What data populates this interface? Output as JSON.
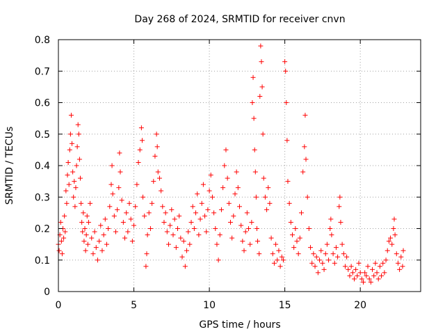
{
  "chart_data": {
    "type": "scatter",
    "title": "Day 268 of 2024, SRMTID for receiver cnvn",
    "xlabel": "GPS time / hours",
    "ylabel": "SRMTID / TECUs",
    "xlim": [
      0,
      24
    ],
    "ylim": [
      0,
      0.8
    ],
    "xticks": [
      0,
      5,
      10,
      15,
      20
    ],
    "xtick_labels": [
      "0",
      "5",
      "10",
      "15",
      "20"
    ],
    "yticks": [
      0,
      0.1,
      0.2,
      0.3,
      0.4,
      0.5,
      0.6,
      0.7,
      0.8
    ],
    "ytick_labels": [
      "0",
      "0.1",
      "0.2",
      "0.3",
      "0.4",
      "0.5",
      "0.6",
      "0.7",
      "0.8"
    ],
    "grid": true,
    "marker": "plus",
    "color": "#ff0000",
    "series": [
      {
        "name": "cnvn",
        "points": [
          [
            0.0,
            0.15
          ],
          [
            0.05,
            0.13
          ],
          [
            0.1,
            0.18
          ],
          [
            0.15,
            0.22
          ],
          [
            0.2,
            0.16
          ],
          [
            0.25,
            0.12
          ],
          [
            0.3,
            0.2
          ],
          [
            0.35,
            0.17
          ],
          [
            0.4,
            0.24
          ],
          [
            0.45,
            0.19
          ],
          [
            0.5,
            0.32
          ],
          [
            0.55,
            0.28
          ],
          [
            0.6,
            0.37
          ],
          [
            0.65,
            0.41
          ],
          [
            0.7,
            0.34
          ],
          [
            0.75,
            0.45
          ],
          [
            0.8,
            0.5
          ],
          [
            0.85,
            0.56
          ],
          [
            0.9,
            0.47
          ],
          [
            0.95,
            0.38
          ],
          [
            1.0,
            0.3
          ],
          [
            1.05,
            0.35
          ],
          [
            1.1,
            0.27
          ],
          [
            1.15,
            0.33
          ],
          [
            1.2,
            0.4
          ],
          [
            1.25,
            0.46
          ],
          [
            1.3,
            0.53
          ],
          [
            1.35,
            0.5
          ],
          [
            1.4,
            0.42
          ],
          [
            1.45,
            0.36
          ],
          [
            1.5,
            0.28
          ],
          [
            1.55,
            0.22
          ],
          [
            1.6,
            0.19
          ],
          [
            1.65,
            0.25
          ],
          [
            1.7,
            0.16
          ],
          [
            1.75,
            0.2
          ],
          [
            1.8,
            0.13
          ],
          [
            1.85,
            0.18
          ],
          [
            1.9,
            0.24
          ],
          [
            1.95,
            0.15
          ],
          [
            2.0,
            0.22
          ],
          [
            2.1,
            0.28
          ],
          [
            2.2,
            0.17
          ],
          [
            2.3,
            0.12
          ],
          [
            2.4,
            0.19
          ],
          [
            2.5,
            0.14
          ],
          [
            2.6,
            0.1
          ],
          [
            2.7,
            0.16
          ],
          [
            2.8,
            0.21
          ],
          [
            2.9,
            0.13
          ],
          [
            3.0,
            0.18
          ],
          [
            3.1,
            0.23
          ],
          [
            3.2,
            0.15
          ],
          [
            3.3,
            0.2
          ],
          [
            3.4,
            0.27
          ],
          [
            3.5,
            0.34
          ],
          [
            3.55,
            0.4
          ],
          [
            3.6,
            0.31
          ],
          [
            3.7,
            0.24
          ],
          [
            3.8,
            0.19
          ],
          [
            3.9,
            0.26
          ],
          [
            4.0,
            0.33
          ],
          [
            4.05,
            0.44
          ],
          [
            4.1,
            0.38
          ],
          [
            4.2,
            0.29
          ],
          [
            4.3,
            0.22
          ],
          [
            4.4,
            0.17
          ],
          [
            4.5,
            0.25
          ],
          [
            4.6,
            0.19
          ],
          [
            4.7,
            0.28
          ],
          [
            4.8,
            0.23
          ],
          [
            4.9,
            0.16
          ],
          [
            5.0,
            0.21
          ],
          [
            5.1,
            0.27
          ],
          [
            5.2,
            0.34
          ],
          [
            5.3,
            0.41
          ],
          [
            5.4,
            0.45
          ],
          [
            5.5,
            0.52
          ],
          [
            5.55,
            0.48
          ],
          [
            5.6,
            0.3
          ],
          [
            5.7,
            0.24
          ],
          [
            5.8,
            0.08
          ],
          [
            5.85,
            0.12
          ],
          [
            5.9,
            0.18
          ],
          [
            6.0,
            0.25
          ],
          [
            6.1,
            0.2
          ],
          [
            6.2,
            0.28
          ],
          [
            6.3,
            0.35
          ],
          [
            6.4,
            0.43
          ],
          [
            6.5,
            0.5
          ],
          [
            6.55,
            0.46
          ],
          [
            6.6,
            0.38
          ],
          [
            6.7,
            0.36
          ],
          [
            6.8,
            0.32
          ],
          [
            6.9,
            0.27
          ],
          [
            7.0,
            0.22
          ],
          [
            7.1,
            0.25
          ],
          [
            7.2,
            0.19
          ],
          [
            7.3,
            0.15
          ],
          [
            7.4,
            0.21
          ],
          [
            7.5,
            0.26
          ],
          [
            7.6,
            0.18
          ],
          [
            7.7,
            0.23
          ],
          [
            7.8,
            0.14
          ],
          [
            7.9,
            0.2
          ],
          [
            8.0,
            0.24
          ],
          [
            8.1,
            0.17
          ],
          [
            8.2,
            0.11
          ],
          [
            8.3,
            0.16
          ],
          [
            8.4,
            0.08
          ],
          [
            8.5,
            0.13
          ],
          [
            8.6,
            0.19
          ],
          [
            8.7,
            0.15
          ],
          [
            8.8,
            0.22
          ],
          [
            8.9,
            0.27
          ],
          [
            9.0,
            0.2
          ],
          [
            9.1,
            0.25
          ],
          [
            9.2,
            0.31
          ],
          [
            9.3,
            0.18
          ],
          [
            9.4,
            0.23
          ],
          [
            9.5,
            0.28
          ],
          [
            9.6,
            0.34
          ],
          [
            9.7,
            0.24
          ],
          [
            9.8,
            0.19
          ],
          [
            9.9,
            0.26
          ],
          [
            10.0,
            0.32
          ],
          [
            10.1,
            0.37
          ],
          [
            10.2,
            0.3
          ],
          [
            10.3,
            0.25
          ],
          [
            10.4,
            0.2
          ],
          [
            10.5,
            0.15
          ],
          [
            10.6,
            0.1
          ],
          [
            10.7,
            0.18
          ],
          [
            10.8,
            0.26
          ],
          [
            10.9,
            0.33
          ],
          [
            11.0,
            0.4
          ],
          [
            11.1,
            0.45
          ],
          [
            11.2,
            0.36
          ],
          [
            11.3,
            0.28
          ],
          [
            11.4,
            0.22
          ],
          [
            11.5,
            0.17
          ],
          [
            11.6,
            0.24
          ],
          [
            11.7,
            0.31
          ],
          [
            11.8,
            0.38
          ],
          [
            11.9,
            0.33
          ],
          [
            12.0,
            0.27
          ],
          [
            12.1,
            0.21
          ],
          [
            12.2,
            0.16
          ],
          [
            12.3,
            0.13
          ],
          [
            12.4,
            0.19
          ],
          [
            12.5,
            0.25
          ],
          [
            12.6,
            0.2
          ],
          [
            12.7,
            0.15
          ],
          [
            12.8,
            0.22
          ],
          [
            12.85,
            0.6
          ],
          [
            12.9,
            0.68
          ],
          [
            12.95,
            0.55
          ],
          [
            13.0,
            0.45
          ],
          [
            13.05,
            0.38
          ],
          [
            13.1,
            0.3
          ],
          [
            13.15,
            0.2
          ],
          [
            13.2,
            0.16
          ],
          [
            13.3,
            0.12
          ],
          [
            13.35,
            0.62
          ],
          [
            13.4,
            0.78
          ],
          [
            13.45,
            0.73
          ],
          [
            13.5,
            0.65
          ],
          [
            13.55,
            0.5
          ],
          [
            13.6,
            0.36
          ],
          [
            13.7,
            0.3
          ],
          [
            13.8,
            0.26
          ],
          [
            13.9,
            0.33
          ],
          [
            14.0,
            0.28
          ],
          [
            14.1,
            0.17
          ],
          [
            14.2,
            0.12
          ],
          [
            14.3,
            0.09
          ],
          [
            14.4,
            0.15
          ],
          [
            14.5,
            0.1
          ],
          [
            14.6,
            0.13
          ],
          [
            14.7,
            0.08
          ],
          [
            14.8,
            0.11
          ],
          [
            14.9,
            0.1
          ],
          [
            15.0,
            0.73
          ],
          [
            15.05,
            0.7
          ],
          [
            15.1,
            0.6
          ],
          [
            15.15,
            0.48
          ],
          [
            15.2,
            0.35
          ],
          [
            15.3,
            0.28
          ],
          [
            15.4,
            0.22
          ],
          [
            15.5,
            0.18
          ],
          [
            15.6,
            0.14
          ],
          [
            15.7,
            0.2
          ],
          [
            15.8,
            0.16
          ],
          [
            15.9,
            0.12
          ],
          [
            16.0,
            0.17
          ],
          [
            16.1,
            0.25
          ],
          [
            16.2,
            0.38
          ],
          [
            16.3,
            0.46
          ],
          [
            16.35,
            0.56
          ],
          [
            16.4,
            0.42
          ],
          [
            16.5,
            0.3
          ],
          [
            16.6,
            0.2
          ],
          [
            16.7,
            0.14
          ],
          [
            16.8,
            0.09
          ],
          [
            16.9,
            0.12
          ],
          [
            17.0,
            0.08
          ],
          [
            17.1,
            0.11
          ],
          [
            17.2,
            0.06
          ],
          [
            17.3,
            0.1
          ],
          [
            17.4,
            0.13
          ],
          [
            17.5,
            0.09
          ],
          [
            17.6,
            0.07
          ],
          [
            17.7,
            0.12
          ],
          [
            17.8,
            0.15
          ],
          [
            17.9,
            0.1
          ],
          [
            18.0,
            0.2
          ],
          [
            18.05,
            0.23
          ],
          [
            18.1,
            0.18
          ],
          [
            18.2,
            0.12
          ],
          [
            18.3,
            0.09
          ],
          [
            18.4,
            0.14
          ],
          [
            18.5,
            0.11
          ],
          [
            18.6,
            0.27
          ],
          [
            18.65,
            0.3
          ],
          [
            18.7,
            0.22
          ],
          [
            18.8,
            0.15
          ],
          [
            18.9,
            0.12
          ],
          [
            19.0,
            0.08
          ],
          [
            19.1,
            0.11
          ],
          [
            19.2,
            0.07
          ],
          [
            19.3,
            0.05
          ],
          [
            19.4,
            0.08
          ],
          [
            19.5,
            0.06
          ],
          [
            19.6,
            0.04
          ],
          [
            19.7,
            0.07
          ],
          [
            19.8,
            0.05
          ],
          [
            19.9,
            0.09
          ],
          [
            20.0,
            0.06
          ],
          [
            20.1,
            0.04
          ],
          [
            20.2,
            0.03
          ],
          [
            20.3,
            0.06
          ],
          [
            20.4,
            0.05
          ],
          [
            20.5,
            0.08
          ],
          [
            20.6,
            0.04
          ],
          [
            20.7,
            0.03
          ],
          [
            20.8,
            0.07
          ],
          [
            20.9,
            0.05
          ],
          [
            21.0,
            0.09
          ],
          [
            21.1,
            0.06
          ],
          [
            21.2,
            0.04
          ],
          [
            21.3,
            0.08
          ],
          [
            21.4,
            0.05
          ],
          [
            21.5,
            0.09
          ],
          [
            21.6,
            0.06
          ],
          [
            21.7,
            0.1
          ],
          [
            21.8,
            0.13
          ],
          [
            21.9,
            0.16
          ],
          [
            22.0,
            0.17
          ],
          [
            22.1,
            0.15
          ],
          [
            22.2,
            0.2
          ],
          [
            22.25,
            0.23
          ],
          [
            22.3,
            0.18
          ],
          [
            22.4,
            0.12
          ],
          [
            22.5,
            0.09
          ],
          [
            22.6,
            0.07
          ],
          [
            22.7,
            0.11
          ],
          [
            22.8,
            0.08
          ],
          [
            22.85,
            0.13
          ]
        ]
      }
    ]
  }
}
